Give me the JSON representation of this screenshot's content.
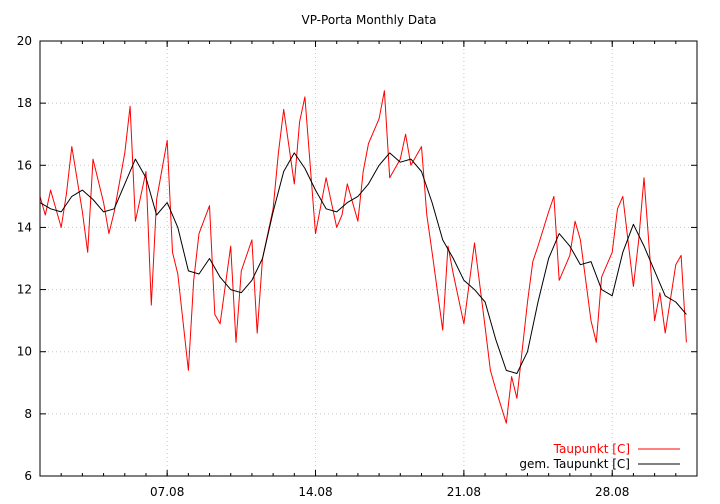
{
  "chart_data": {
    "type": "line",
    "title": "VP-Porta Monthly Data",
    "xlabel": "",
    "ylabel": "",
    "xlim": [
      "2008-08-01",
      "2008-08-31"
    ],
    "ylim": [
      6,
      20
    ],
    "y_ticks": [
      6,
      8,
      10,
      12,
      14,
      16,
      18,
      20
    ],
    "x_ticks": [
      {
        "date": "2008-08-07",
        "label": "07.08"
      },
      {
        "date": "2008-08-14",
        "label": "14.08"
      },
      {
        "date": "2008-08-21",
        "label": "21.08"
      },
      {
        "date": "2008-08-28",
        "label": "28.08"
      }
    ],
    "grid": true,
    "legend": "bottom-right",
    "series": [
      {
        "name": "Taupunkt [C]",
        "color": "#ff0000",
        "points": [
          [
            "2008-08-01 00:00",
            15.0
          ],
          [
            "2008-08-01 06:00",
            14.4
          ],
          [
            "2008-08-01 12:00",
            15.2
          ],
          [
            "2008-08-02 00:00",
            14.0
          ],
          [
            "2008-08-02 06:00",
            15.1
          ],
          [
            "2008-08-02 12:00",
            16.6
          ],
          [
            "2008-08-03 00:00",
            14.5
          ],
          [
            "2008-08-03 06:00",
            13.2
          ],
          [
            "2008-08-03 12:00",
            16.2
          ],
          [
            "2008-08-04 00:00",
            14.8
          ],
          [
            "2008-08-04 06:00",
            13.8
          ],
          [
            "2008-08-04 12:00",
            14.5
          ],
          [
            "2008-08-05 00:00",
            16.4
          ],
          [
            "2008-08-05 06:00",
            17.9
          ],
          [
            "2008-08-05 12:00",
            14.2
          ],
          [
            "2008-08-06 00:00",
            15.8
          ],
          [
            "2008-08-06 06:00",
            11.5
          ],
          [
            "2008-08-06 12:00",
            14.9
          ],
          [
            "2008-08-07 00:00",
            16.8
          ],
          [
            "2008-08-07 06:00",
            13.2
          ],
          [
            "2008-08-07 12:00",
            12.5
          ],
          [
            "2008-08-08 00:00",
            9.4
          ],
          [
            "2008-08-08 06:00",
            12.3
          ],
          [
            "2008-08-08 12:00",
            13.8
          ],
          [
            "2008-08-09 00:00",
            14.7
          ],
          [
            "2008-08-09 06:00",
            11.2
          ],
          [
            "2008-08-09 12:00",
            10.9
          ],
          [
            "2008-08-10 00:00",
            13.4
          ],
          [
            "2008-08-10 06:00",
            10.3
          ],
          [
            "2008-08-10 12:00",
            12.6
          ],
          [
            "2008-08-11 00:00",
            13.6
          ],
          [
            "2008-08-11 06:00",
            10.6
          ],
          [
            "2008-08-11 12:00",
            13.0
          ],
          [
            "2008-08-12 00:00",
            14.6
          ],
          [
            "2008-08-12 06:00",
            16.4
          ],
          [
            "2008-08-12 12:00",
            17.8
          ],
          [
            "2008-08-13 00:00",
            15.4
          ],
          [
            "2008-08-13 06:00",
            17.4
          ],
          [
            "2008-08-13 12:00",
            18.2
          ],
          [
            "2008-08-14 00:00",
            13.8
          ],
          [
            "2008-08-14 06:00",
            14.7
          ],
          [
            "2008-08-14 12:00",
            15.6
          ],
          [
            "2008-08-15 00:00",
            14.0
          ],
          [
            "2008-08-15 06:00",
            14.4
          ],
          [
            "2008-08-15 12:00",
            15.4
          ],
          [
            "2008-08-16 00:00",
            14.2
          ],
          [
            "2008-08-16 06:00",
            15.8
          ],
          [
            "2008-08-16 12:00",
            16.7
          ],
          [
            "2008-08-17 00:00",
            17.5
          ],
          [
            "2008-08-17 06:00",
            18.4
          ],
          [
            "2008-08-17 12:00",
            15.6
          ],
          [
            "2008-08-18 00:00",
            16.2
          ],
          [
            "2008-08-18 06:00",
            17.0
          ],
          [
            "2008-08-18 12:00",
            16.0
          ],
          [
            "2008-08-19 00:00",
            16.6
          ],
          [
            "2008-08-19 06:00",
            14.4
          ],
          [
            "2008-08-19 12:00",
            13.2
          ],
          [
            "2008-08-20 00:00",
            10.7
          ],
          [
            "2008-08-20 06:00",
            13.4
          ],
          [
            "2008-08-20 12:00",
            12.5
          ],
          [
            "2008-08-21 00:00",
            10.9
          ],
          [
            "2008-08-21 06:00",
            12.2
          ],
          [
            "2008-08-21 12:00",
            13.5
          ],
          [
            "2008-08-22 00:00",
            10.8
          ],
          [
            "2008-08-22 06:00",
            9.4
          ],
          [
            "2008-08-22 12:00",
            8.8
          ],
          [
            "2008-08-23 00:00",
            7.7
          ],
          [
            "2008-08-23 06:00",
            9.2
          ],
          [
            "2008-08-23 12:00",
            8.5
          ],
          [
            "2008-08-24 00:00",
            11.6
          ],
          [
            "2008-08-24 06:00",
            12.9
          ],
          [
            "2008-08-24 12:00",
            13.4
          ],
          [
            "2008-08-25 00:00",
            14.5
          ],
          [
            "2008-08-25 06:00",
            15.0
          ],
          [
            "2008-08-25 12:00",
            12.3
          ],
          [
            "2008-08-26 00:00",
            13.1
          ],
          [
            "2008-08-26 06:00",
            14.2
          ],
          [
            "2008-08-26 12:00",
            13.6
          ],
          [
            "2008-08-27 00:00",
            11.0
          ],
          [
            "2008-08-27 06:00",
            10.3
          ],
          [
            "2008-08-27 12:00",
            12.4
          ],
          [
            "2008-08-28 00:00",
            13.2
          ],
          [
            "2008-08-28 06:00",
            14.6
          ],
          [
            "2008-08-28 12:00",
            15.0
          ],
          [
            "2008-08-29 00:00",
            12.1
          ],
          [
            "2008-08-29 06:00",
            13.6
          ],
          [
            "2008-08-29 12:00",
            15.6
          ],
          [
            "2008-08-30 00:00",
            11.0
          ],
          [
            "2008-08-30 06:00",
            11.9
          ],
          [
            "2008-08-30 12:00",
            10.6
          ],
          [
            "2008-08-31 00:00",
            12.8
          ],
          [
            "2008-08-31 06:00",
            13.1
          ],
          [
            "2008-08-31 12:00",
            10.3
          ]
        ]
      },
      {
        "name": "gem. Taupunkt [C]",
        "color": "#000000",
        "points": [
          [
            "2008-08-01 00:00",
            14.8
          ],
          [
            "2008-08-01 12:00",
            14.6
          ],
          [
            "2008-08-02 00:00",
            14.5
          ],
          [
            "2008-08-02 12:00",
            15.0
          ],
          [
            "2008-08-03 00:00",
            15.2
          ],
          [
            "2008-08-03 12:00",
            14.9
          ],
          [
            "2008-08-04 00:00",
            14.5
          ],
          [
            "2008-08-04 12:00",
            14.6
          ],
          [
            "2008-08-05 00:00",
            15.4
          ],
          [
            "2008-08-05 12:00",
            16.2
          ],
          [
            "2008-08-06 00:00",
            15.6
          ],
          [
            "2008-08-06 12:00",
            14.4
          ],
          [
            "2008-08-07 00:00",
            14.8
          ],
          [
            "2008-08-07 12:00",
            14.0
          ],
          [
            "2008-08-08 00:00",
            12.6
          ],
          [
            "2008-08-08 12:00",
            12.5
          ],
          [
            "2008-08-09 00:00",
            13.0
          ],
          [
            "2008-08-09 12:00",
            12.4
          ],
          [
            "2008-08-10 00:00",
            12.0
          ],
          [
            "2008-08-10 12:00",
            11.9
          ],
          [
            "2008-08-11 00:00",
            12.3
          ],
          [
            "2008-08-11 12:00",
            13.0
          ],
          [
            "2008-08-12 00:00",
            14.5
          ],
          [
            "2008-08-12 12:00",
            15.8
          ],
          [
            "2008-08-13 00:00",
            16.4
          ],
          [
            "2008-08-13 12:00",
            15.9
          ],
          [
            "2008-08-14 00:00",
            15.2
          ],
          [
            "2008-08-14 12:00",
            14.6
          ],
          [
            "2008-08-15 00:00",
            14.5
          ],
          [
            "2008-08-15 12:00",
            14.8
          ],
          [
            "2008-08-16 00:00",
            15.0
          ],
          [
            "2008-08-16 12:00",
            15.4
          ],
          [
            "2008-08-17 00:00",
            16.0
          ],
          [
            "2008-08-17 12:00",
            16.4
          ],
          [
            "2008-08-18 00:00",
            16.1
          ],
          [
            "2008-08-18 12:00",
            16.2
          ],
          [
            "2008-08-19 00:00",
            15.8
          ],
          [
            "2008-08-19 12:00",
            14.8
          ],
          [
            "2008-08-20 00:00",
            13.6
          ],
          [
            "2008-08-20 12:00",
            13.0
          ],
          [
            "2008-08-21 00:00",
            12.3
          ],
          [
            "2008-08-21 12:00",
            12.0
          ],
          [
            "2008-08-22 00:00",
            11.6
          ],
          [
            "2008-08-22 12:00",
            10.4
          ],
          [
            "2008-08-23 00:00",
            9.4
          ],
          [
            "2008-08-23 12:00",
            9.3
          ],
          [
            "2008-08-24 00:00",
            10.0
          ],
          [
            "2008-08-24 12:00",
            11.6
          ],
          [
            "2008-08-25 00:00",
            13.0
          ],
          [
            "2008-08-25 12:00",
            13.8
          ],
          [
            "2008-08-26 00:00",
            13.4
          ],
          [
            "2008-08-26 12:00",
            12.8
          ],
          [
            "2008-08-27 00:00",
            12.9
          ],
          [
            "2008-08-27 12:00",
            12.0
          ],
          [
            "2008-08-28 00:00",
            11.8
          ],
          [
            "2008-08-28 12:00",
            13.2
          ],
          [
            "2008-08-29 00:00",
            14.1
          ],
          [
            "2008-08-29 12:00",
            13.4
          ],
          [
            "2008-08-30 00:00",
            12.6
          ],
          [
            "2008-08-30 12:00",
            11.8
          ],
          [
            "2008-08-31 00:00",
            11.6
          ],
          [
            "2008-08-31 12:00",
            11.2
          ]
        ]
      }
    ]
  }
}
